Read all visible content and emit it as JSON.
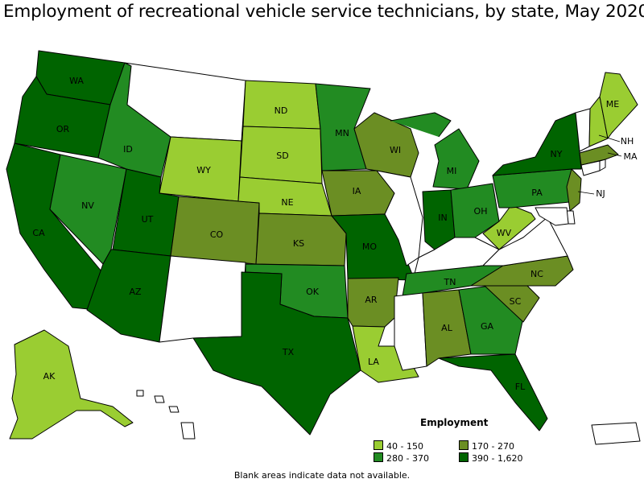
{
  "title": "Employment of recreational vehicle service technicians, by state, May 2020",
  "footnote": "Blank areas indicate data not available.",
  "legend": {
    "title": "Employment",
    "bins": [
      {
        "label": "40 - 150",
        "color": "#9acd32"
      },
      {
        "label": "170 - 270",
        "color": "#6b8e23"
      },
      {
        "label": "280 - 370",
        "color": "#228b22"
      },
      {
        "label": "390 - 1,620",
        "color": "#006400"
      }
    ],
    "no_data_color": "#ffffff"
  },
  "states": [
    {
      "abbr": "WA",
      "bin": 3
    },
    {
      "abbr": "OR",
      "bin": 3
    },
    {
      "abbr": "CA",
      "bin": 3
    },
    {
      "abbr": "NV",
      "bin": 2
    },
    {
      "abbr": "ID",
      "bin": 2
    },
    {
      "abbr": "MT",
      "bin": null
    },
    {
      "abbr": "WY",
      "bin": 0
    },
    {
      "abbr": "UT",
      "bin": 3
    },
    {
      "abbr": "AZ",
      "bin": 3
    },
    {
      "abbr": "CO",
      "bin": 1
    },
    {
      "abbr": "NM",
      "bin": null
    },
    {
      "abbr": "ND",
      "bin": 0
    },
    {
      "abbr": "SD",
      "bin": 0
    },
    {
      "abbr": "NE",
      "bin": 0
    },
    {
      "abbr": "KS",
      "bin": 1
    },
    {
      "abbr": "OK",
      "bin": 2
    },
    {
      "abbr": "TX",
      "bin": 3
    },
    {
      "abbr": "MN",
      "bin": 2
    },
    {
      "abbr": "IA",
      "bin": 1
    },
    {
      "abbr": "MO",
      "bin": 3
    },
    {
      "abbr": "AR",
      "bin": 1
    },
    {
      "abbr": "LA",
      "bin": 0
    },
    {
      "abbr": "WI",
      "bin": 1
    },
    {
      "abbr": "IL",
      "bin": null
    },
    {
      "abbr": "MI",
      "bin": 2
    },
    {
      "abbr": "IN",
      "bin": 3
    },
    {
      "abbr": "OH",
      "bin": 2
    },
    {
      "abbr": "KY",
      "bin": null
    },
    {
      "abbr": "TN",
      "bin": 2
    },
    {
      "abbr": "MS",
      "bin": null
    },
    {
      "abbr": "AL",
      "bin": 1
    },
    {
      "abbr": "GA",
      "bin": 2
    },
    {
      "abbr": "FL",
      "bin": 3
    },
    {
      "abbr": "SC",
      "bin": 1
    },
    {
      "abbr": "NC",
      "bin": 1
    },
    {
      "abbr": "VA",
      "bin": null
    },
    {
      "abbr": "WV",
      "bin": 0
    },
    {
      "abbr": "PA",
      "bin": 2
    },
    {
      "abbr": "NY",
      "bin": 3
    },
    {
      "abbr": "NJ",
      "bin": 1
    },
    {
      "abbr": "MA",
      "bin": 1
    },
    {
      "abbr": "NH",
      "bin": 0
    },
    {
      "abbr": "ME",
      "bin": 0
    },
    {
      "abbr": "VT",
      "bin": null
    },
    {
      "abbr": "CT",
      "bin": null
    },
    {
      "abbr": "RI",
      "bin": null
    },
    {
      "abbr": "DE",
      "bin": null
    },
    {
      "abbr": "MD",
      "bin": null
    },
    {
      "abbr": "AK",
      "bin": 0
    },
    {
      "abbr": "HI",
      "bin": null
    },
    {
      "abbr": "PR",
      "bin": null
    }
  ]
}
